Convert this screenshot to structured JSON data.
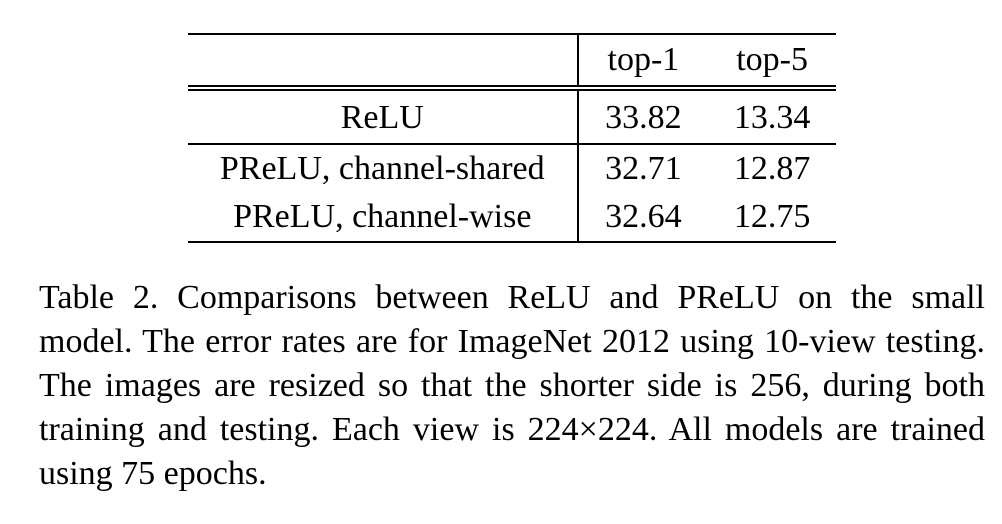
{
  "table": {
    "headers": [
      "",
      "top-1",
      "top-5"
    ],
    "rows": [
      {
        "method": "ReLU",
        "top1": "33.82",
        "top5": "13.34"
      },
      {
        "method": "PReLU, channel-shared",
        "top1": "32.71",
        "top5": "12.87"
      },
      {
        "method": "PReLU, channel-wise",
        "top1": "32.64",
        "top5": "12.75"
      }
    ]
  },
  "caption": "Table 2. Comparisons between ReLU and PReLU on the small model. The error rates are for ImageNet 2012 using 10-view testing. The images are resized so that the shorter side is 256, during both training and testing. Each view is 224×224. All models are trained using 75 epochs."
}
